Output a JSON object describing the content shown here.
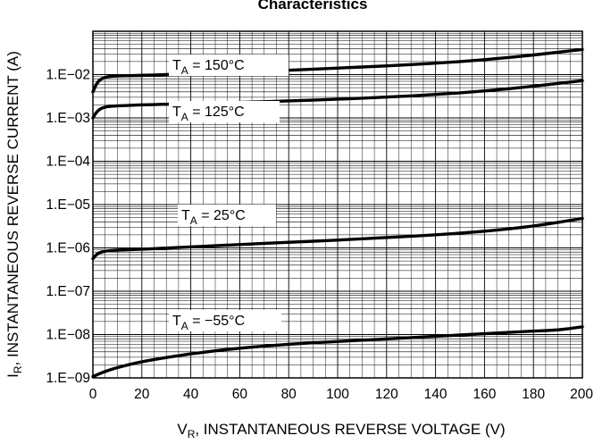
{
  "chart_data": {
    "type": "line",
    "title": "Characteristics",
    "xlabel": {
      "main": "V",
      "sub": "R",
      "rest": ", INSTANTANEOUS REVERSE VOLTAGE (V)"
    },
    "ylabel": {
      "main": "I",
      "sub": "R",
      "rest": ", INSTANTANEOUS REVERSE CURRENT (A)"
    },
    "xlim": [
      0,
      200
    ],
    "ylim_exponent": [
      -9,
      -1
    ],
    "y_scale": "log",
    "grid": true,
    "x_ticks": [
      0,
      20,
      40,
      60,
      80,
      100,
      120,
      140,
      160,
      180,
      200
    ],
    "y_ticks": [
      {
        "label": "1.E−09",
        "exp": -9
      },
      {
        "label": "1.E−08",
        "exp": -8
      },
      {
        "label": "1.E−07",
        "exp": -7
      },
      {
        "label": "1.E−06",
        "exp": -6
      },
      {
        "label": "1.E−05",
        "exp": -5
      },
      {
        "label": "1.E−04",
        "exp": -4
      },
      {
        "label": "1.E−03",
        "exp": -3
      },
      {
        "label": "1.E−02",
        "exp": -2
      }
    ],
    "series": [
      {
        "label": {
          "prefix": "T",
          "sub": "A",
          "rest": " = 150°C"
        },
        "x": [
          0,
          2,
          5,
          10,
          20,
          40,
          60,
          80,
          100,
          120,
          140,
          160,
          180,
          200
        ],
        "log_y": [
          -2.4,
          -2.15,
          -2.05,
          -2.03,
          -2.02,
          -1.98,
          -1.94,
          -1.9,
          -1.85,
          -1.8,
          -1.74,
          -1.66,
          -1.55,
          -1.42
        ]
      },
      {
        "label": {
          "prefix": "T",
          "sub": "A",
          "rest": " = 125°C"
        },
        "x": [
          0,
          2,
          5,
          10,
          20,
          40,
          60,
          80,
          100,
          120,
          140,
          160,
          180,
          200
        ],
        "log_y": [
          -3.0,
          -2.82,
          -2.74,
          -2.72,
          -2.7,
          -2.67,
          -2.64,
          -2.61,
          -2.57,
          -2.52,
          -2.46,
          -2.38,
          -2.27,
          -2.14
        ]
      },
      {
        "label": {
          "prefix": "T",
          "sub": "A",
          "rest": " = 25°C"
        },
        "x": [
          0,
          2,
          5,
          10,
          20,
          40,
          60,
          80,
          100,
          120,
          140,
          160,
          180,
          200
        ],
        "log_y": [
          -6.25,
          -6.12,
          -6.07,
          -6.05,
          -6.03,
          -5.98,
          -5.92,
          -5.87,
          -5.82,
          -5.76,
          -5.7,
          -5.62,
          -5.5,
          -5.32
        ]
      },
      {
        "label": {
          "prefix": "T",
          "sub": "A",
          "rest": " = −55°C"
        },
        "x": [
          0,
          5,
          10,
          20,
          40,
          60,
          80,
          100,
          120,
          140,
          160,
          180,
          190,
          200
        ],
        "log_y": [
          -8.97,
          -8.85,
          -8.76,
          -8.62,
          -8.44,
          -8.31,
          -8.22,
          -8.16,
          -8.1,
          -8.04,
          -7.98,
          -7.92,
          -7.9,
          -7.82
        ]
      }
    ]
  }
}
